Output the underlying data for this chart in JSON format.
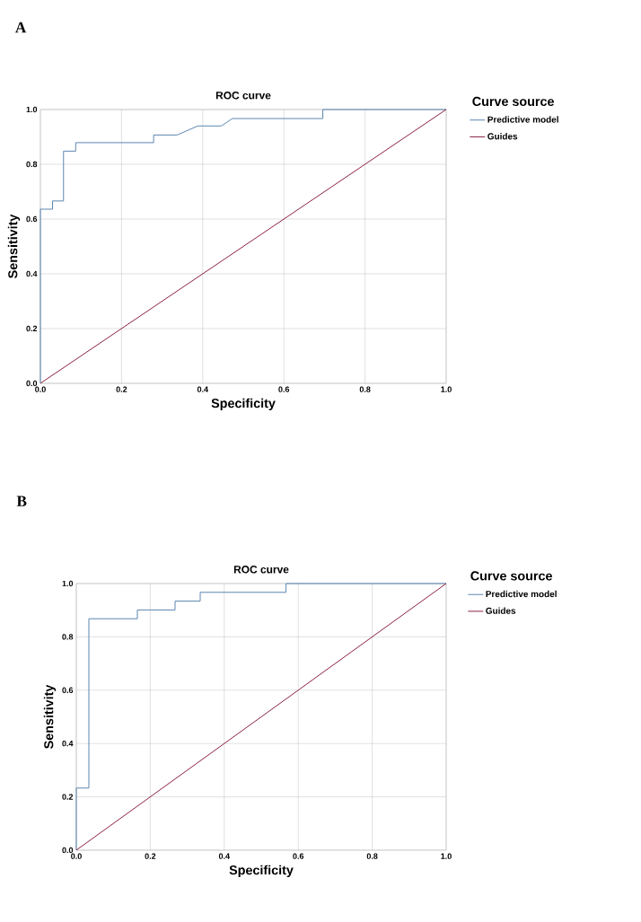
{
  "chart_data": [
    {
      "type": "line",
      "title": "ROC curve",
      "xlabel": "Specificity",
      "ylabel": "Sensitivity",
      "legend_title": "Curve  source",
      "annotations": [
        "A"
      ],
      "legend": "top right",
      "grid": true,
      "line_style": "solid",
      "xlim": [
        0,
        1
      ],
      "ylim": [
        0,
        1
      ],
      "xticks": [
        {
          "value": 0,
          "label": "0.0"
        },
        {
          "value": 0.2,
          "label": "0.2"
        },
        {
          "value": 0.4,
          "label": "0.4"
        },
        {
          "value": 0.6,
          "label": "0.6"
        },
        {
          "value": 0.8,
          "label": "0.8"
        },
        {
          "value": 1,
          "label": "1.0"
        }
      ],
      "yticks": [
        {
          "value": 0,
          "label": "0.0"
        },
        {
          "value": 0.2,
          "label": "0.2"
        },
        {
          "value": 0.4,
          "label": "0.4"
        },
        {
          "value": 0.6,
          "label": "0.6"
        },
        {
          "value": 0.8,
          "label": "0.8"
        },
        {
          "value": 1,
          "label": "1.0"
        }
      ],
      "series": [
        {
          "name": "Predictive model",
          "color": "#5b86b0",
          "x": [
            0,
            0,
            0.03,
            0.03,
            0.057,
            0.057,
            0.087,
            0.087,
            0.279,
            0.279,
            0.337,
            0.388,
            0.446,
            0.473,
            0.696,
            0.696,
            1
          ],
          "values": [
            0,
            0.636,
            0.636,
            0.666,
            0.666,
            0.848,
            0.848,
            0.879,
            0.879,
            0.907,
            0.907,
            0.94,
            0.94,
            0.967,
            0.967,
            1,
            1
          ]
        },
        {
          "name": "Guides",
          "color": "#8b2040",
          "x": [
            0,
            1
          ],
          "values": [
            0,
            1
          ]
        }
      ]
    },
    {
      "type": "line",
      "title": "ROC curve",
      "xlabel": "Specificity",
      "ylabel": "Sensitivity",
      "legend_title": "Curve  source",
      "annotations": [
        "B"
      ],
      "legend": "top right",
      "grid": true,
      "line_style": "solid",
      "xlim": [
        0,
        1
      ],
      "ylim": [
        0,
        1
      ],
      "xticks": [
        {
          "value": 0,
          "label": "0.0"
        },
        {
          "value": 0.2,
          "label": "0.2"
        },
        {
          "value": 0.4,
          "label": "0.4"
        },
        {
          "value": 0.6,
          "label": "0.6"
        },
        {
          "value": 0.8,
          "label": "0.8"
        },
        {
          "value": 1,
          "label": "1.0"
        }
      ],
      "yticks": [
        {
          "value": 0,
          "label": "0.0"
        },
        {
          "value": 0.2,
          "label": "0.2"
        },
        {
          "value": 0.4,
          "label": "0.4"
        },
        {
          "value": 0.6,
          "label": "0.6"
        },
        {
          "value": 0.8,
          "label": "0.8"
        },
        {
          "value": 1,
          "label": "1.0"
        }
      ],
      "series": [
        {
          "name": "Predictive model",
          "color": "#5b86b0",
          "x": [
            0,
            0,
            0.034,
            0.034,
            0.165,
            0.165,
            0.267,
            0.267,
            0.335,
            0.335,
            0.567,
            0.567,
            1
          ],
          "values": [
            0,
            0.233,
            0.233,
            0.868,
            0.868,
            0.901,
            0.901,
            0.934,
            0.934,
            0.967,
            0.967,
            1,
            1
          ]
        },
        {
          "name": "Guides",
          "color": "#8b2040",
          "x": [
            0,
            1
          ],
          "values": [
            0,
            1
          ]
        }
      ]
    }
  ]
}
